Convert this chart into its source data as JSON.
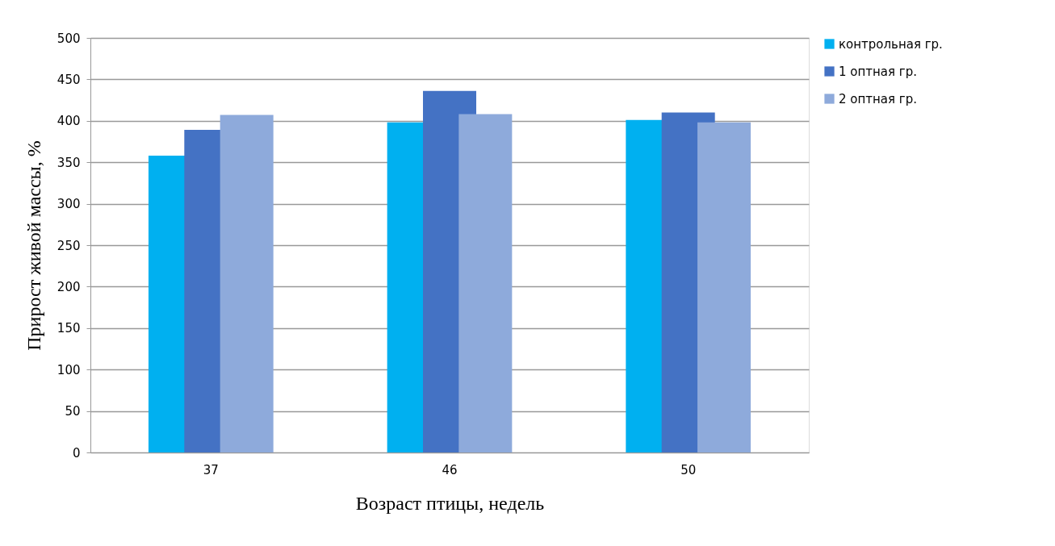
{
  "chart_data": {
    "type": "bar",
    "xlabel": "Возраст птицы, недель",
    "ylabel": "Прирост живой массы, %",
    "categories": [
      "37",
      "46",
      "50"
    ],
    "series": [
      {
        "name": "контрольная гр.",
        "color": "#00b0f0",
        "values": [
          358,
          398,
          401
        ]
      },
      {
        "name": "1 оптная гр.",
        "color": "#4472c4",
        "values": [
          389,
          436,
          410
        ]
      },
      {
        "name": "2 оптная гр.",
        "color": "#8eaadb",
        "values": [
          407,
          408,
          398
        ]
      }
    ],
    "ylim": [
      0,
      500
    ],
    "yticks": [
      0,
      50,
      100,
      150,
      200,
      250,
      300,
      350,
      400,
      450,
      500
    ],
    "grid": "y",
    "legend": "right"
  }
}
